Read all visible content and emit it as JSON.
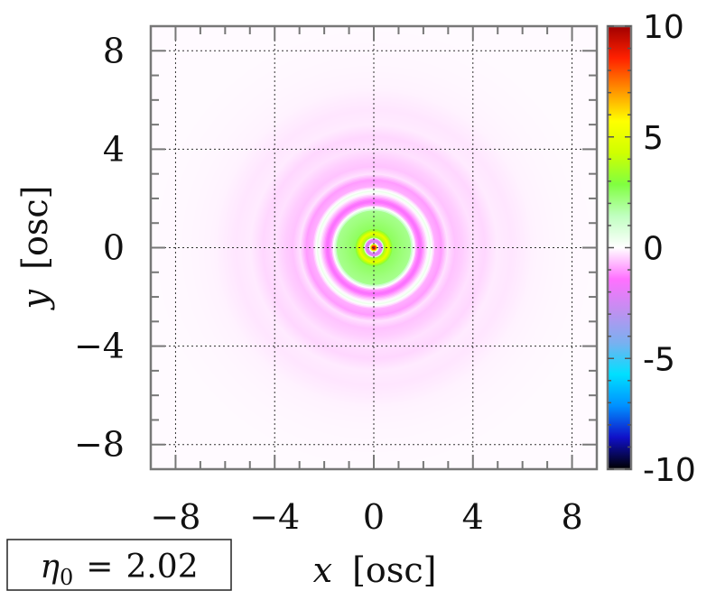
{
  "chart_data": {
    "type": "heatmap",
    "title": "",
    "xlabel": {
      "var": "x",
      "unit": "[osc]"
    },
    "ylabel": {
      "var": "y",
      "unit": "[osc]"
    },
    "xlim": [
      -9,
      9
    ],
    "ylim": [
      -9,
      9
    ],
    "xticks": [
      -8,
      -4,
      0,
      4,
      8
    ],
    "yticks": [
      8,
      4,
      0,
      -4,
      -8
    ],
    "xtick_labels": [
      "−8",
      "−4",
      "0",
      "4",
      "8"
    ],
    "ytick_labels": [
      "8",
      "4",
      "0",
      "−4",
      "−8"
    ],
    "grid": true,
    "colorbar": {
      "range": [
        -10,
        10
      ],
      "ticks": [
        10,
        5,
        0,
        -5,
        -10
      ],
      "tick_labels": [
        "10",
        "5",
        "0",
        "-5",
        "-10"
      ],
      "colors": [
        "#000000",
        "#1010c8",
        "#0090ff",
        "#00e0ff",
        "#7ab0f0",
        "#c090f0",
        "#ff70ff",
        "#ffffff",
        "#c0ffc0",
        "#80ff40",
        "#d0ff00",
        "#ffff00",
        "#ff9000",
        "#ff2000",
        "#a00000"
      ]
    },
    "radial_profile": [
      {
        "r": 0.0,
        "value": 10.0
      },
      {
        "r": 0.12,
        "value": 8.0
      },
      {
        "r": 0.22,
        "value": -1.5
      },
      {
        "r": 0.32,
        "value": -3.0
      },
      {
        "r": 0.45,
        "value": 3.5
      },
      {
        "r": 0.6,
        "value": 5.0
      },
      {
        "r": 0.8,
        "value": 2.5
      },
      {
        "r": 1.2,
        "value": 2.2
      },
      {
        "r": 1.5,
        "value": 2.0
      },
      {
        "r": 1.6,
        "value": 0.6
      },
      {
        "r": 1.75,
        "value": -1.0
      },
      {
        "r": 1.9,
        "value": -1.6
      },
      {
        "r": 2.1,
        "value": -0.6
      },
      {
        "r": 2.3,
        "value": 0.4
      },
      {
        "r": 2.5,
        "value": -0.8
      },
      {
        "r": 2.75,
        "value": -1.0
      },
      {
        "r": 3.0,
        "value": -0.3
      },
      {
        "r": 3.3,
        "value": -0.6
      },
      {
        "r": 3.6,
        "value": -0.5
      },
      {
        "r": 4.0,
        "value": -0.3
      },
      {
        "r": 4.5,
        "value": -0.4
      },
      {
        "r": 5.0,
        "value": -0.2
      },
      {
        "r": 5.6,
        "value": -0.25
      },
      {
        "r": 6.5,
        "value": -0.12
      },
      {
        "r": 7.5,
        "value": -0.08
      },
      {
        "r": 9.0,
        "value": -0.05
      }
    ]
  },
  "parameter": {
    "symbol": "η",
    "subscript": "0",
    "relation": "=",
    "value": "2.02"
  }
}
